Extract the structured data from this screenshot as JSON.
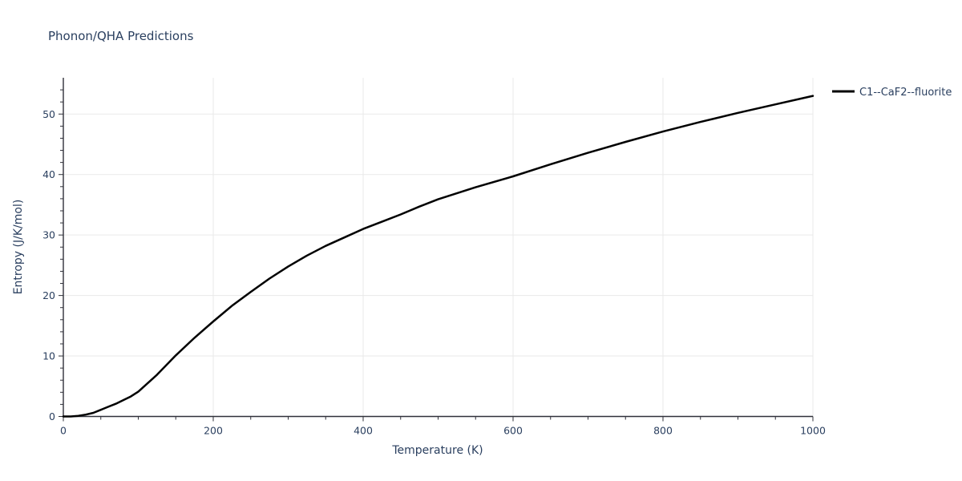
{
  "page": {
    "background_color": "#ffffff"
  },
  "chart_data": {
    "type": "line",
    "title": "Phonon/QHA Predictions",
    "xlabel": "Temperature (K)",
    "ylabel": "Entropy (J/K/mol)",
    "xlim": [
      0,
      1000
    ],
    "ylim": [
      0,
      56
    ],
    "x_ticks": [
      0,
      200,
      400,
      600,
      800,
      1000
    ],
    "x_minor_step": 50,
    "y_ticks": [
      0,
      10,
      20,
      30,
      40,
      50
    ],
    "y_minor_step": 2,
    "grid": {
      "show_x": true,
      "show_y": true
    },
    "legend_position": "top-right-outside",
    "series": [
      {
        "name": "C1--CaF2--fluorite",
        "color": "#000000",
        "line_width": 2.5,
        "x": [
          0,
          10,
          20,
          30,
          40,
          50,
          60,
          70,
          80,
          90,
          100,
          125,
          150,
          175,
          200,
          225,
          250,
          275,
          300,
          325,
          350,
          375,
          400,
          425,
          450,
          475,
          500,
          550,
          600,
          650,
          700,
          750,
          800,
          850,
          900,
          950,
          1000
        ],
        "y": [
          0.0,
          0.0,
          0.1,
          0.3,
          0.6,
          1.1,
          1.6,
          2.1,
          2.7,
          3.3,
          4.1,
          6.9,
          10.1,
          13.0,
          15.7,
          18.3,
          20.6,
          22.8,
          24.8,
          26.6,
          28.2,
          29.6,
          31.0,
          32.2,
          33.4,
          34.7,
          35.9,
          37.9,
          39.7,
          41.7,
          43.6,
          45.4,
          47.1,
          48.7,
          50.2,
          51.6,
          53.0
        ]
      }
    ],
    "colors": {
      "text": "#2a3f5f",
      "axis": "#30313a",
      "grid": "#e9e9e9",
      "background": "#ffffff"
    }
  }
}
